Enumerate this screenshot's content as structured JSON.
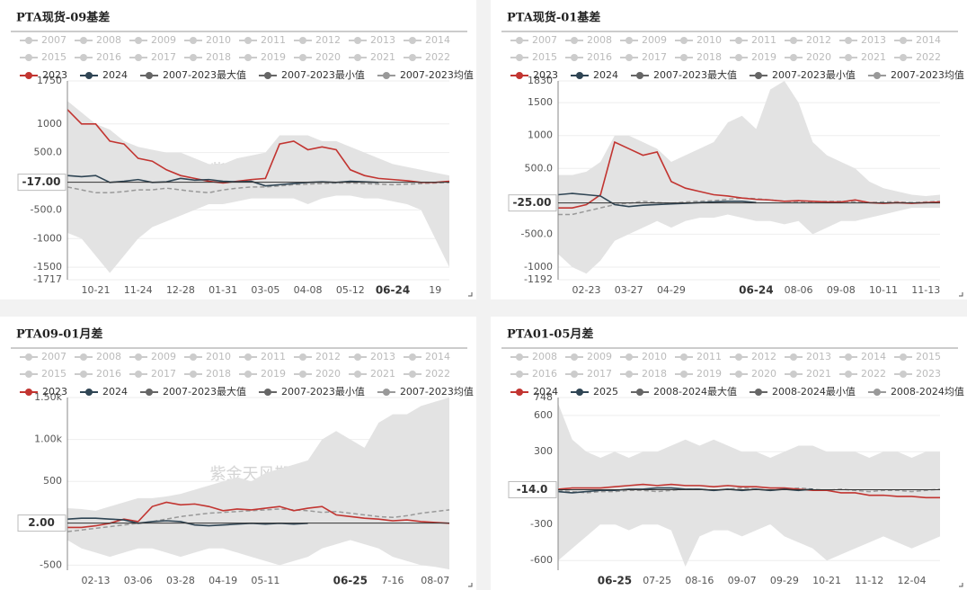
{
  "chart_data": [
    {
      "type": "line",
      "title": "PTA现货-09基差",
      "watermark": "紫金天风期货",
      "grid": true,
      "band_color": "#e3e3e3",
      "legend_disabled": [
        "2007",
        "2008",
        "2009",
        "2010",
        "2011",
        "2012",
        "2013",
        "2014",
        "2015",
        "2016",
        "2017",
        "2018",
        "2019",
        "2020",
        "2021",
        "2022"
      ],
      "categories": [
        null,
        null,
        "10-21",
        null,
        null,
        "11-24",
        null,
        null,
        "12-28",
        null,
        null,
        "01-31",
        null,
        null,
        "03-05",
        null,
        null,
        "04-08",
        null,
        null,
        "05-12",
        null,
        null,
        "06-24",
        null,
        null,
        "19",
        null
      ],
      "x_pointer_index": 23,
      "y_pointer": {
        "value": -17,
        "label": "-17.00"
      },
      "ylim": [
        -1717,
        1750
      ],
      "yticks": [
        1750,
        1000,
        {
          "value": 500,
          "label": "500.0"
        },
        {
          "value": -500,
          "label": "-500.0"
        },
        -1000,
        -1500,
        -1717
      ],
      "series": [
        {
          "name": "2023",
          "color": "#c23531",
          "style": "line",
          "values": [
            1250,
            1000,
            1000,
            700,
            650,
            400,
            350,
            200,
            100,
            50,
            0,
            -30,
            0,
            30,
            50,
            650,
            700,
            550,
            600,
            550,
            200,
            100,
            50,
            30,
            10,
            -20,
            -20,
            0
          ]
        },
        {
          "name": "2024",
          "color": "#2f4554",
          "style": "line",
          "values": [
            100,
            80,
            100,
            -20,
            0,
            30,
            -20,
            -10,
            50,
            20,
            30,
            0,
            -10,
            0,
            -80,
            -60,
            -40,
            -20,
            -10,
            -20,
            0,
            -10,
            -20,
            null,
            null,
            null,
            null,
            null
          ]
        },
        {
          "name": "2007-2023最大值",
          "color": "#666666",
          "style": "area",
          "values": [
            1400,
            1200,
            1000,
            900,
            700,
            600,
            550,
            500,
            500,
            400,
            300,
            300,
            400,
            450,
            500,
            800,
            800,
            800,
            700,
            700,
            600,
            500,
            400,
            300,
            250,
            200,
            150,
            100
          ]
        },
        {
          "name": "2007-2023最小值",
          "color": "#666666",
          "style": "area",
          "values": [
            -900,
            -1000,
            -1300,
            -1600,
            -1300,
            -1000,
            -800,
            -700,
            -600,
            -500,
            -400,
            -400,
            -350,
            -300,
            -300,
            -300,
            -300,
            -400,
            -300,
            -250,
            -250,
            -300,
            -300,
            -350,
            -400,
            -500,
            -1000,
            -1500
          ]
        },
        {
          "name": "2007-2023均值",
          "color": "#999999",
          "style": "dashed",
          "values": [
            -100,
            -150,
            -200,
            -200,
            -180,
            -150,
            -150,
            -120,
            -150,
            -180,
            -200,
            -150,
            -120,
            -100,
            -100,
            -80,
            -60,
            -50,
            -40,
            -30,
            -30,
            -40,
            -50,
            -60,
            -50,
            -40,
            -30,
            -20
          ]
        }
      ]
    },
    {
      "type": "line",
      "title": "PTA现货-01基差",
      "watermark": "紫金天风期货",
      "grid": true,
      "band_color": "#e3e3e3",
      "legend_disabled": [
        "2007",
        "2008",
        "2009",
        "2010",
        "2011",
        "2012",
        "2013",
        "2014",
        "2015",
        "2016",
        "2017",
        "2018",
        "2019",
        "2020",
        "2021",
        "2022"
      ],
      "categories": [
        null,
        null,
        "02-23",
        null,
        null,
        "03-27",
        null,
        null,
        "04-29",
        null,
        null,
        null,
        null,
        null,
        "06-24",
        null,
        null,
        "08-06",
        null,
        null,
        "09-08",
        null,
        null,
        "10-11",
        null,
        null,
        "11-13",
        null
      ],
      "x_pointer_index": 14,
      "y_pointer": {
        "value": -25,
        "label": "-25.00"
      },
      "ylim": [
        -1192,
        1830
      ],
      "yticks": [
        1830,
        1500,
        1000,
        {
          "value": 500,
          "label": "500.0"
        },
        {
          "value": -500,
          "label": "-500.0"
        },
        -1000,
        -1192
      ],
      "series": [
        {
          "name": "2023",
          "color": "#c23531",
          "style": "line",
          "values": [
            -100,
            -100,
            -50,
            100,
            900,
            800,
            700,
            750,
            300,
            200,
            150,
            100,
            80,
            50,
            30,
            20,
            0,
            10,
            0,
            -10,
            -10,
            20,
            -20,
            -30,
            -20,
            -30,
            -20,
            -10
          ]
        },
        {
          "name": "2024",
          "color": "#2f4554",
          "style": "line",
          "values": [
            100,
            120,
            100,
            80,
            -50,
            -80,
            -60,
            -50,
            -40,
            -30,
            -20,
            -10,
            0,
            0,
            -20,
            null,
            null,
            null,
            null,
            null,
            null,
            null,
            null,
            null,
            null,
            null,
            null,
            null
          ]
        },
        {
          "name": "2007-2023最大值",
          "color": "#666666",
          "style": "area",
          "values": [
            400,
            400,
            450,
            600,
            1000,
            1000,
            900,
            800,
            600,
            700,
            800,
            900,
            1200,
            1300,
            1100,
            1700,
            1830,
            1500,
            900,
            700,
            600,
            500,
            300,
            200,
            150,
            100,
            80,
            100
          ]
        },
        {
          "name": "2007-2023最小值",
          "color": "#666666",
          "style": "area",
          "values": [
            -800,
            -1000,
            -1100,
            -900,
            -600,
            -500,
            -400,
            -300,
            -400,
            -300,
            -250,
            -250,
            -200,
            -250,
            -300,
            -300,
            -350,
            -300,
            -500,
            -400,
            -300,
            -300,
            -250,
            -200,
            -150,
            -100,
            -100,
            -100
          ]
        },
        {
          "name": "2007-2023均值",
          "color": "#999999",
          "style": "dashed",
          "values": [
            -200,
            -200,
            -150,
            -100,
            -50,
            -30,
            0,
            -20,
            -30,
            -10,
            0,
            10,
            30,
            50,
            40,
            20,
            0,
            -10,
            -10,
            0,
            0,
            -10,
            -20,
            -10,
            -10,
            -20,
            -10,
            0
          ]
        }
      ]
    },
    {
      "type": "line",
      "title": "PTA09-01月差",
      "watermark": "紫金天风期货",
      "grid": true,
      "band_color": "#e3e3e3",
      "legend_disabled": [
        "2007",
        "2008",
        "2009",
        "2010",
        "2011",
        "2012",
        "2013",
        "2014",
        "2015",
        "2016",
        "2017",
        "2018",
        "2019",
        "2020",
        "2021",
        "2022"
      ],
      "categories": [
        null,
        null,
        "02-13",
        null,
        null,
        "03-06",
        null,
        null,
        "03-28",
        null,
        null,
        "04-19",
        null,
        null,
        "05-11",
        null,
        null,
        null,
        null,
        null,
        "06-25",
        null,
        null,
        "7-16",
        null,
        null,
        "08-07",
        null
      ],
      "x_pointer_index": 20,
      "y_pointer": {
        "value": 2,
        "label": "2.00"
      },
      "ylim": [
        -560,
        1500
      ],
      "yticks": [
        {
          "value": 1500,
          "label": "1.50k"
        },
        {
          "value": 1000,
          "label": "1.00k"
        },
        500,
        -500
      ],
      "series": [
        {
          "name": "2023",
          "color": "#c23531",
          "style": "line",
          "values": [
            -50,
            -50,
            -30,
            0,
            50,
            20,
            200,
            250,
            220,
            230,
            200,
            150,
            170,
            160,
            180,
            200,
            150,
            180,
            200,
            100,
            80,
            60,
            50,
            30,
            40,
            20,
            10,
            0
          ]
        },
        {
          "name": "2024",
          "color": "#2f4554",
          "style": "line",
          "values": [
            50,
            60,
            60,
            50,
            40,
            0,
            20,
            30,
            20,
            -20,
            -30,
            -20,
            -10,
            0,
            -10,
            0,
            -10,
            0,
            null,
            null,
            null,
            null,
            null,
            null,
            null,
            null,
            null,
            null
          ]
        },
        {
          "name": "2007-2023最大值",
          "color": "#666666",
          "style": "area",
          "values": [
            180,
            170,
            150,
            200,
            250,
            300,
            300,
            320,
            350,
            400,
            450,
            500,
            550,
            500,
            600,
            650,
            700,
            750,
            1000,
            1100,
            1000,
            900,
            1200,
            1300,
            1300,
            1400,
            1450,
            1500
          ]
        },
        {
          "name": "2007-2023最小值",
          "color": "#666666",
          "style": "area",
          "values": [
            -200,
            -300,
            -350,
            -400,
            -350,
            -300,
            -300,
            -350,
            -400,
            -350,
            -300,
            -300,
            -350,
            -400,
            -450,
            -500,
            -450,
            -400,
            -300,
            -250,
            -200,
            -250,
            -300,
            -400,
            -450,
            -500,
            -520,
            -550
          ]
        },
        {
          "name": "2007-2023均值",
          "color": "#999999",
          "style": "dashed",
          "values": [
            -100,
            -80,
            -60,
            -40,
            -20,
            0,
            20,
            50,
            80,
            100,
            120,
            130,
            140,
            150,
            160,
            170,
            160,
            150,
            130,
            140,
            120,
            100,
            80,
            70,
            90,
            120,
            140,
            160
          ]
        }
      ]
    },
    {
      "type": "line",
      "title": "PTA01-05月差",
      "watermark": "紫金天风期货",
      "grid": true,
      "band_color": "#e3e3e3",
      "legend_disabled": [
        "2008",
        "2009",
        "2010",
        "2011",
        "2012",
        "2013",
        "2014",
        "2015",
        "2016",
        "2017",
        "2018",
        "2019",
        "2020",
        "2021",
        "2022",
        "2023"
      ],
      "categories": [
        null,
        null,
        null,
        null,
        "06-25",
        null,
        null,
        "07-25",
        null,
        null,
        "08-16",
        null,
        null,
        "09-07",
        null,
        null,
        "09-29",
        null,
        null,
        "10-21",
        null,
        null,
        "11-12",
        null,
        null,
        "12-04",
        null,
        null
      ],
      "x_pointer_index": 4,
      "y_pointer": {
        "value": -14,
        "label": "-14.0"
      },
      "ylim": [
        -680,
        748
      ],
      "yticks": [
        748,
        600,
        300,
        -300,
        -600
      ],
      "series": [
        {
          "name": "2024",
          "color": "#c23531",
          "style": "line",
          "values": [
            -10,
            0,
            0,
            0,
            10,
            20,
            30,
            20,
            30,
            20,
            20,
            10,
            20,
            10,
            10,
            0,
            0,
            -10,
            -20,
            -20,
            -40,
            -40,
            -60,
            -60,
            -70,
            -70,
            -80,
            -80
          ]
        },
        {
          "name": "2025",
          "color": "#2f4554",
          "style": "line",
          "values": [
            -30,
            -40,
            -30,
            -20,
            -20,
            -10,
            -10,
            0,
            0,
            -10,
            -10,
            -20,
            -10,
            -20,
            -10,
            -20,
            -10,
            -20,
            -10,
            null,
            null,
            null,
            null,
            null,
            null,
            null,
            null,
            null
          ]
        },
        {
          "name": "2008-2024最大值",
          "color": "#666666",
          "style": "area",
          "values": [
            700,
            400,
            300,
            250,
            300,
            250,
            300,
            300,
            350,
            400,
            350,
            400,
            350,
            300,
            300,
            250,
            300,
            350,
            350,
            300,
            300,
            300,
            250,
            300,
            300,
            250,
            300,
            300
          ]
        },
        {
          "name": "2008-2024最小值",
          "color": "#666666",
          "style": "area",
          "values": [
            -600,
            -500,
            -400,
            -300,
            -300,
            -350,
            -300,
            -300,
            -350,
            -650,
            -400,
            -350,
            -350,
            -400,
            -350,
            -300,
            -400,
            -450,
            -500,
            -600,
            -550,
            -500,
            -450,
            -400,
            -450,
            -500,
            -450,
            -400
          ]
        },
        {
          "name": "2008-2024均值",
          "color": "#999999",
          "style": "dashed",
          "values": [
            -20,
            -30,
            -40,
            -30,
            -30,
            -20,
            -20,
            -30,
            -20,
            -10,
            -10,
            -20,
            -10,
            0,
            -10,
            -20,
            -10,
            0,
            -10,
            -20,
            -10,
            -20,
            -30,
            -20,
            -20,
            -30,
            -20,
            -10
          ]
        }
      ]
    }
  ]
}
